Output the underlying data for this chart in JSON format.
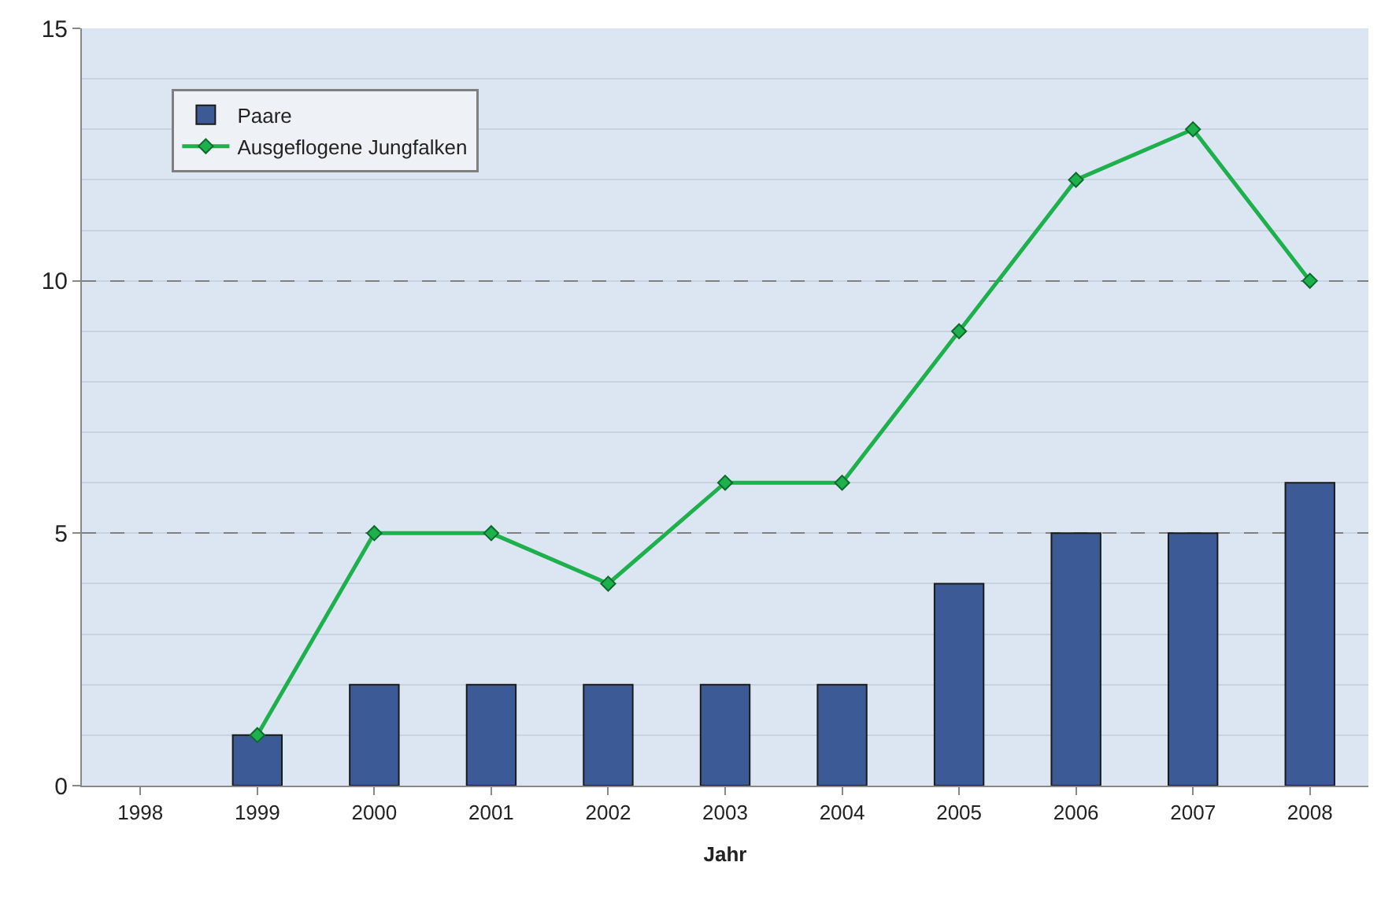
{
  "chart_data": {
    "type": "bar",
    "xlabel": "Jahr",
    "categories": [
      "1998",
      "1999",
      "2000",
      "2001",
      "2002",
      "2003",
      "2004",
      "2005",
      "2006",
      "2007",
      "2008"
    ],
    "series": [
      {
        "name": "Paare",
        "color": "#3c5a96",
        "values": [
          null,
          1,
          2,
          2,
          2,
          2,
          2,
          4,
          5,
          5,
          6
        ]
      },
      {
        "name": "Ausgeflogene Jungfalken",
        "type": "line",
        "color": "#1db04c",
        "marker": "diamond",
        "values": [
          null,
          1,
          5,
          5,
          4,
          6,
          6,
          9,
          12,
          13,
          10
        ]
      }
    ],
    "ylim": [
      0,
      15
    ],
    "yticks": [
      0,
      5,
      10,
      15
    ],
    "grid": "y",
    "legend": "top left"
  }
}
